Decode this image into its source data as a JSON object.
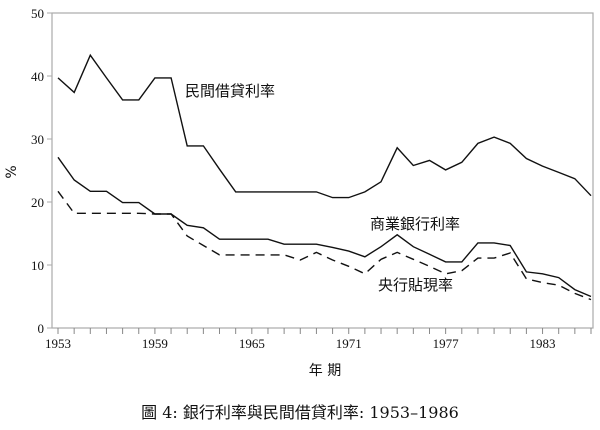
{
  "chart_data": {
    "type": "line",
    "title": "圖 4: 銀行利率與民間借貸利率: 1953–1986",
    "xlabel": "年 期",
    "ylabel": "%",
    "xlim": [
      1953,
      1986
    ],
    "ylim": [
      0,
      50
    ],
    "yticks": [
      0,
      10,
      20,
      30,
      40,
      50
    ],
    "xticks": [
      1953,
      1959,
      1965,
      1971,
      1977,
      1983
    ],
    "grid": false,
    "x": [
      1953,
      1954,
      1955,
      1956,
      1957,
      1958,
      1959,
      1960,
      1961,
      1962,
      1963,
      1964,
      1965,
      1966,
      1967,
      1968,
      1969,
      1970,
      1971,
      1972,
      1973,
      1974,
      1975,
      1976,
      1977,
      1978,
      1979,
      1980,
      1981,
      1982,
      1983,
      1984,
      1985,
      1986
    ],
    "series": [
      {
        "name": "民間借貸利率",
        "style": "solid",
        "values": [
          39.7,
          37.4,
          43.3,
          39.7,
          36.2,
          36.2,
          39.7,
          39.7,
          28.9,
          28.9,
          25.2,
          21.6,
          21.6,
          21.6,
          21.6,
          21.6,
          21.6,
          20.7,
          20.7,
          21.6,
          23.2,
          28.6,
          25.8,
          26.6,
          25.1,
          26.3,
          29.3,
          30.3,
          29.3,
          26.9,
          25.7,
          24.7,
          23.7,
          21.0
        ]
      },
      {
        "name": "商業銀行利率",
        "style": "solid",
        "values": [
          27.1,
          23.5,
          21.7,
          21.7,
          19.9,
          19.9,
          18.1,
          18.1,
          16.3,
          15.9,
          14.1,
          14.1,
          14.1,
          14.1,
          13.3,
          13.3,
          13.3,
          12.8,
          12.2,
          11.3,
          12.9,
          14.8,
          12.9,
          11.7,
          10.5,
          10.5,
          13.5,
          13.5,
          13.1,
          8.9,
          8.6,
          8.0,
          6.1,
          5.0
        ]
      },
      {
        "name": "央行貼現率",
        "style": "dashed",
        "values": [
          21.7,
          18.2,
          18.2,
          18.2,
          18.2,
          18.2,
          18.1,
          18.1,
          14.6,
          13.1,
          11.6,
          11.6,
          11.6,
          11.6,
          11.6,
          10.8,
          12.0,
          10.8,
          9.8,
          8.6,
          10.9,
          12.0,
          10.9,
          9.8,
          8.6,
          9.1,
          11.1,
          11.1,
          11.9,
          7.8,
          7.2,
          6.8,
          5.5,
          4.5
        ]
      }
    ]
  }
}
